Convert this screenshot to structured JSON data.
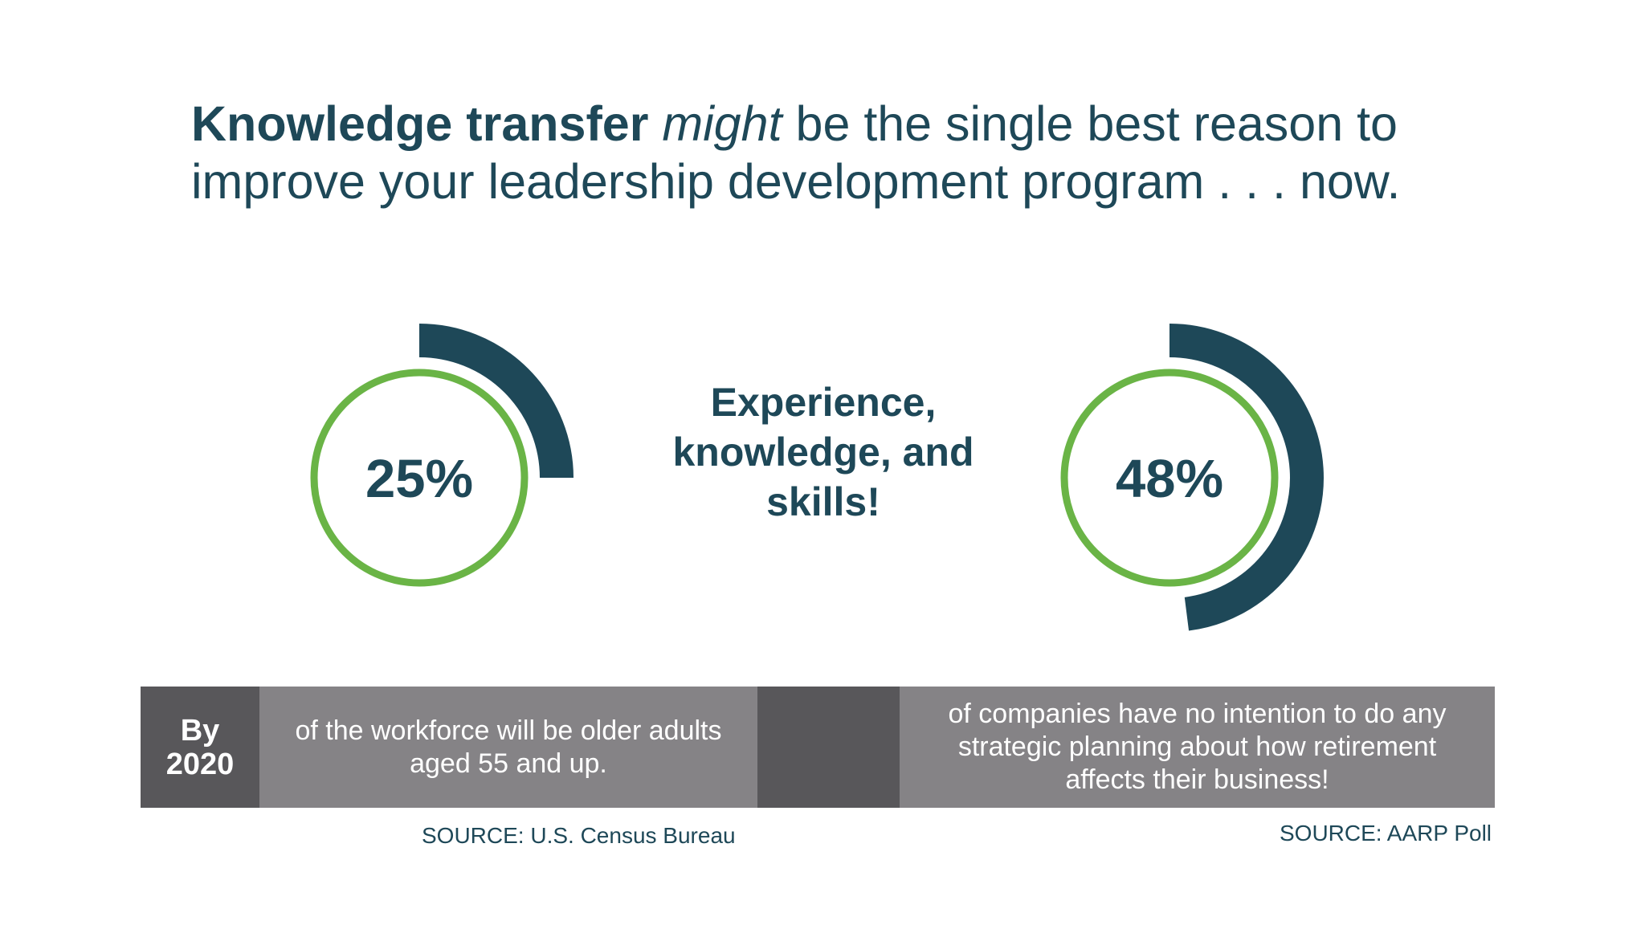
{
  "headline": {
    "bold": "Knowledge transfer",
    "italic": "might",
    "rest": "be the single best reason to improve your leadership development program . . . now."
  },
  "stats": [
    {
      "value_label": "25%",
      "percent": 25
    },
    {
      "value_label": "48%",
      "percent": 48
    }
  ],
  "center_text": [
    "Experience,",
    "knowledge, and",
    "skills!"
  ],
  "band": {
    "year_lines": [
      "By",
      "2020"
    ],
    "left_text": "of the workforce will be older adults aged 55 and up.",
    "right_text": "of companies have no intention to do any strategic planning about how retirement affects their business!"
  },
  "sources": {
    "left": "SOURCE: U.S. Census Bureau",
    "right": "SOURCE: AARP Poll"
  },
  "colors": {
    "navy": "#1e4858",
    "green": "#6ab446",
    "dark_gray": "#58575a",
    "gray": "#858386"
  }
}
